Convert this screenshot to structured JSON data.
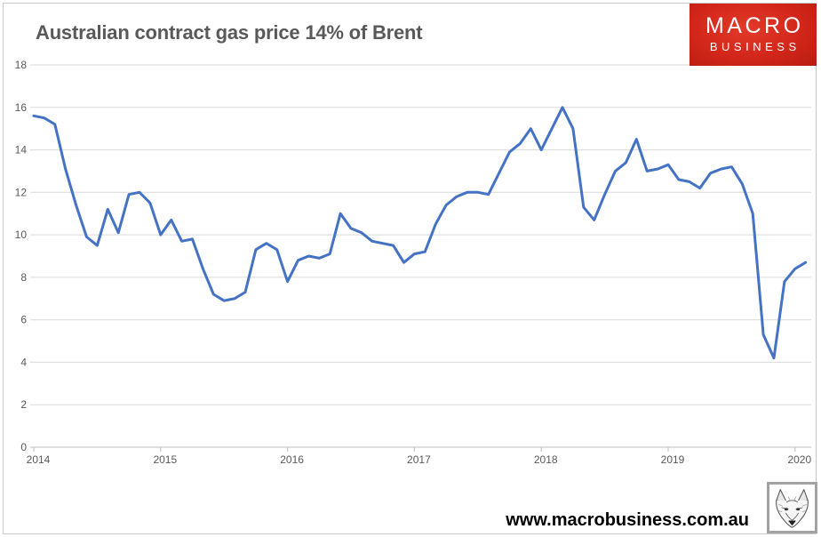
{
  "title": "Australian contract gas price 14% of Brent",
  "brand_logo": {
    "line1": "MACRO",
    "line2": "BUSINESS"
  },
  "footer": {
    "website": "www.macrobusiness.com.au"
  },
  "colors": {
    "line": "#4472c4",
    "grid": "#d9d9d9",
    "axis": "#bfbfbf",
    "title_text": "#595959",
    "tick_text": "#595959",
    "logo_red": "#d2261a",
    "footer_text": "#000000"
  },
  "chart_data": {
    "type": "line",
    "title": "Australian contract gas price 14% of Brent",
    "xlabel": "",
    "ylabel": "",
    "x_unit": "month",
    "x_range": [
      "2014-01",
      "2020-02"
    ],
    "x_tick_labels": [
      "2014",
      "2015",
      "2016",
      "2017",
      "2018",
      "2019",
      "2020"
    ],
    "y_ticks": [
      0,
      2,
      4,
      6,
      8,
      10,
      12,
      14,
      16,
      18
    ],
    "ylim": [
      0,
      18
    ],
    "grid": true,
    "legend_position": "none",
    "series": [
      {
        "name": "Australian contract gas price (14% of Brent)",
        "color": "#4472c4",
        "values": [
          15.6,
          15.5,
          15.2,
          13.1,
          11.4,
          9.9,
          9.5,
          11.2,
          10.1,
          11.9,
          12.0,
          11.5,
          10.0,
          10.7,
          9.7,
          9.8,
          8.4,
          7.2,
          6.9,
          7.0,
          7.3,
          9.3,
          9.6,
          9.3,
          7.8,
          8.8,
          9.0,
          8.9,
          9.1,
          11.0,
          10.3,
          10.1,
          9.7,
          9.6,
          9.5,
          8.7,
          9.1,
          9.2,
          10.5,
          11.4,
          11.8,
          12.0,
          12.0,
          11.9,
          12.9,
          13.9,
          14.3,
          15.0,
          14.0,
          15.0,
          16.0,
          15.0,
          11.3,
          10.7,
          11.9,
          13.0,
          13.4,
          14.5,
          13.0,
          13.1,
          13.3,
          12.6,
          12.5,
          12.2,
          12.9,
          13.1,
          13.2,
          12.4,
          11.0,
          5.3,
          4.2,
          7.8,
          8.4,
          8.7
        ]
      }
    ]
  }
}
